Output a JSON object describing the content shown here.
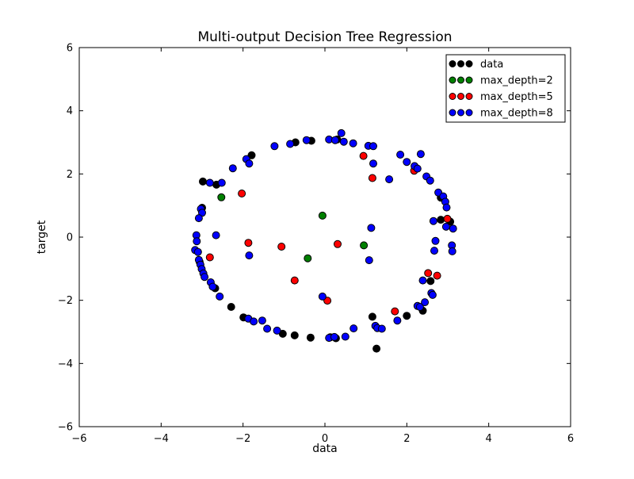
{
  "figure": {
    "background": "#ffffff"
  },
  "chart_data": {
    "type": "scatter",
    "title": "Multi-output Decision Tree Regression",
    "xlabel": "data",
    "ylabel": "target",
    "xlim": [
      -6,
      6
    ],
    "ylim": [
      -6,
      6
    ],
    "grid": false,
    "xticks": [
      -6,
      -4,
      -2,
      0,
      2,
      4,
      6
    ],
    "xtick_labels": [
      "−6",
      "−4",
      "−2",
      "0",
      "2",
      "4",
      "6"
    ],
    "yticks": [
      -6,
      -4,
      -2,
      0,
      2,
      4,
      6
    ],
    "ytick_labels": [
      "−6",
      "−4",
      "−2",
      "0",
      "2",
      "4",
      "6"
    ],
    "marker": {
      "radius_px": 4.5,
      "edge_color": "#000000"
    },
    "legend": {
      "position": "upper right",
      "entries": [
        {
          "label": "data",
          "color": "#000000"
        },
        {
          "label": "max_depth=2",
          "color": "#008000"
        },
        {
          "label": "max_depth=5",
          "color": "#ff0000"
        },
        {
          "label": "max_depth=8",
          "color": "#0000ff"
        }
      ]
    },
    "series": [
      {
        "name": "data",
        "color": "#000000",
        "points": [
          [
            -0.72,
            3.0
          ],
          [
            -0.33,
            3.05
          ],
          [
            0.3,
            3.09
          ],
          [
            -1.79,
            2.59
          ],
          [
            -2.98,
            1.76
          ],
          [
            -2.65,
            1.66
          ],
          [
            -3.0,
            0.93
          ],
          [
            2.83,
            1.25
          ],
          [
            2.83,
            0.55
          ],
          [
            3.06,
            0.49
          ],
          [
            2.58,
            -1.39
          ],
          [
            2.39,
            -2.33
          ],
          [
            2.0,
            -2.49
          ],
          [
            1.16,
            -2.52
          ],
          [
            1.26,
            -3.53
          ],
          [
            0.13,
            -3.17
          ],
          [
            0.27,
            -3.2
          ],
          [
            -0.35,
            -3.18
          ],
          [
            -0.74,
            -3.11
          ],
          [
            -1.03,
            -3.06
          ],
          [
            -1.99,
            -2.54
          ],
          [
            -2.29,
            -2.21
          ],
          [
            -3.06,
            -0.78
          ],
          [
            -2.68,
            -1.62
          ]
        ]
      },
      {
        "name": "max_depth=2",
        "color": "#008000",
        "points": [
          [
            -2.53,
            1.26
          ],
          [
            -0.06,
            0.68
          ],
          [
            -0.42,
            -0.67
          ],
          [
            0.95,
            -0.26
          ]
        ]
      },
      {
        "name": "max_depth=5",
        "color": "#ff0000",
        "points": [
          [
            -2.03,
            1.38
          ],
          [
            0.94,
            2.57
          ],
          [
            1.16,
            1.87
          ],
          [
            2.18,
            2.1
          ],
          [
            2.99,
            0.58
          ],
          [
            -2.81,
            -0.64
          ],
          [
            -1.87,
            -0.18
          ],
          [
            -1.06,
            -0.3
          ],
          [
            0.31,
            -0.22
          ],
          [
            -0.74,
            -1.37
          ],
          [
            0.06,
            -2.01
          ],
          [
            2.52,
            -1.14
          ],
          [
            2.74,
            -1.22
          ],
          [
            1.71,
            -2.35
          ]
        ]
      },
      {
        "name": "max_depth=8",
        "color": "#0000ff",
        "points": [
          [
            -1.23,
            2.88
          ],
          [
            -0.85,
            2.95
          ],
          [
            -0.45,
            3.07
          ],
          [
            0.1,
            3.09
          ],
          [
            0.25,
            3.07
          ],
          [
            0.4,
            3.29
          ],
          [
            0.46,
            3.02
          ],
          [
            0.69,
            2.97
          ],
          [
            1.06,
            2.89
          ],
          [
            1.18,
            2.88
          ],
          [
            1.84,
            2.61
          ],
          [
            2.0,
            2.38
          ],
          [
            1.18,
            2.33
          ],
          [
            1.57,
            1.83
          ],
          [
            2.19,
            2.25
          ],
          [
            2.26,
            2.17
          ],
          [
            2.34,
            2.63
          ],
          [
            2.48,
            1.92
          ],
          [
            2.57,
            1.79
          ],
          [
            2.77,
            1.41
          ],
          [
            2.89,
            1.29
          ],
          [
            2.94,
            1.12
          ],
          [
            2.97,
            0.94
          ],
          [
            2.65,
            0.51
          ],
          [
            2.96,
            0.33
          ],
          [
            3.13,
            0.27
          ],
          [
            2.7,
            -0.12
          ],
          [
            3.1,
            -0.26
          ],
          [
            2.67,
            -0.43
          ],
          [
            3.11,
            -0.45
          ],
          [
            -1.92,
            2.47
          ],
          [
            -1.85,
            2.33
          ],
          [
            -2.25,
            2.18
          ],
          [
            -2.81,
            1.72
          ],
          [
            -2.52,
            1.72
          ],
          [
            -3.03,
            0.89
          ],
          [
            -3.0,
            0.77
          ],
          [
            -3.08,
            0.6
          ],
          [
            -3.14,
            0.06
          ],
          [
            -2.66,
            0.06
          ],
          [
            -3.13,
            -0.13
          ],
          [
            -3.17,
            -0.41
          ],
          [
            -3.1,
            -0.47
          ],
          [
            -3.08,
            -0.72
          ],
          [
            -3.04,
            -0.87
          ],
          [
            -3.01,
            -1.01
          ],
          [
            -2.97,
            -1.15
          ],
          [
            -2.94,
            -1.26
          ],
          [
            -2.79,
            -1.43
          ],
          [
            -2.74,
            -1.57
          ],
          [
            -2.57,
            -1.88
          ],
          [
            -1.87,
            -2.58
          ],
          [
            -1.74,
            -2.67
          ],
          [
            -1.53,
            -2.64
          ],
          [
            -1.41,
            -2.9
          ],
          [
            -1.17,
            -2.96
          ],
          [
            0.1,
            -3.19
          ],
          [
            0.23,
            -3.16
          ],
          [
            0.5,
            -3.15
          ],
          [
            0.7,
            -2.89
          ],
          [
            1.23,
            -2.81
          ],
          [
            1.28,
            -2.88
          ],
          [
            1.39,
            -2.9
          ],
          [
            1.77,
            -2.64
          ],
          [
            2.26,
            -2.18
          ],
          [
            2.32,
            -2.21
          ],
          [
            2.44,
            -2.06
          ],
          [
            2.6,
            -1.77
          ],
          [
            2.63,
            -1.83
          ],
          [
            2.39,
            -1.37
          ],
          [
            -1.85,
            -0.58
          ],
          [
            1.13,
            0.29
          ],
          [
            1.08,
            -0.73
          ],
          [
            -0.06,
            -1.88
          ]
        ]
      }
    ]
  }
}
